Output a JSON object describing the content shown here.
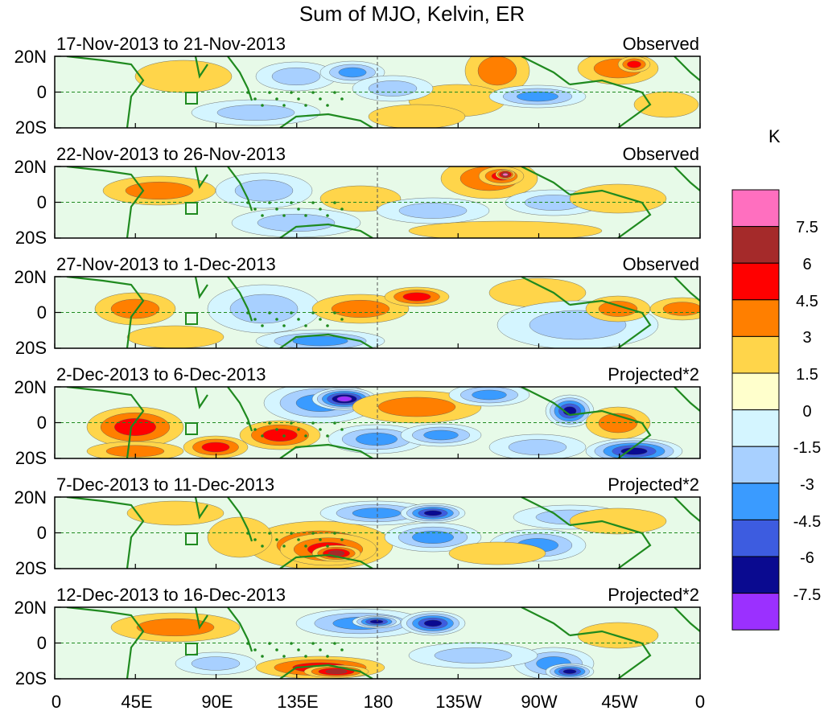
{
  "title": "Sum of MJO, Kelvin, ER",
  "y_ticks": [
    "20N",
    "0",
    "20S"
  ],
  "x_ticks": [
    "0",
    "45E",
    "90E",
    "135E",
    "180",
    "135W",
    "90W",
    "45W",
    "0"
  ],
  "colorbar": {
    "unit": "K",
    "labels": [
      "7.5",
      "6",
      "4.5",
      "3",
      "1.5",
      "0",
      "-1.5",
      "-3",
      "-4.5",
      "-6",
      "-7.5"
    ],
    "colors": [
      "#ff6fbf",
      "#a52a2a",
      "#ff0000",
      "#ff7f00",
      "#ffd54a",
      "#ffffcc",
      "#d4f5ff",
      "#a8d0ff",
      "#3a9bff",
      "#3d5ce0",
      "#0a0a90",
      "#9b30ff"
    ]
  },
  "panels": [
    {
      "date_range": "17-Nov-2013 to 21-Nov-2013",
      "type": "Observed"
    },
    {
      "date_range": "22-Nov-2013 to 26-Nov-2013",
      "type": "Observed"
    },
    {
      "date_range": "27-Nov-2013 to 1-Dec-2013",
      "type": "Observed"
    },
    {
      "date_range": "2-Dec-2013 to 6-Dec-2013",
      "type": "Projected*2"
    },
    {
      "date_range": "7-Dec-2013 to 11-Dec-2013",
      "type": "Projected*2"
    },
    {
      "date_range": "12-Dec-2013 to 16-Dec-2013",
      "type": "Projected*2"
    }
  ]
}
